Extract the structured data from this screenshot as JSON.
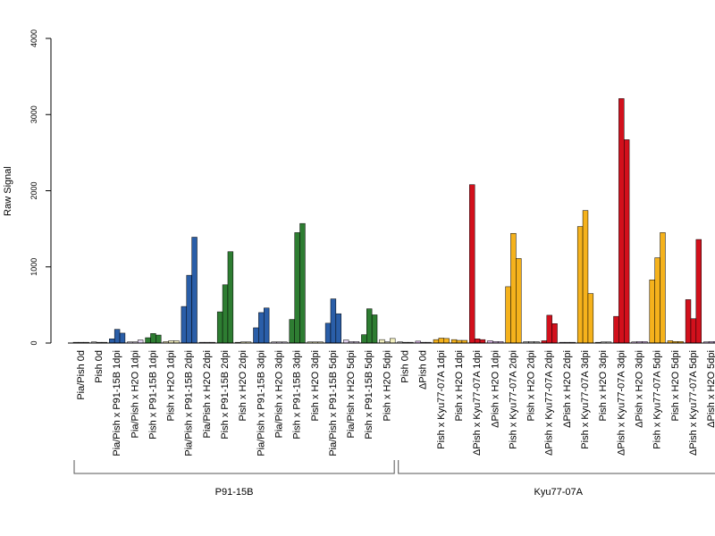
{
  "chart_data": {
    "type": "bar",
    "grouped": true,
    "ylabel": "Raw Signal",
    "ylim": [
      0,
      4000
    ],
    "yticks": [
      "0",
      "1000",
      "2000",
      "3000",
      "4000"
    ],
    "grid": false,
    "legend": "none",
    "categories": [
      "Pia/Pish 0d",
      "Pish 0d",
      "Pia/Pish x P91-15B 1dpi",
      "Pia/Pish x H2O 1dpi",
      "Pish x P91-15B 1dpi",
      "Pish x H2O 1dpi",
      "Pia/Pish x P91-15B 2dpi",
      "Pia/Pish x H2O 2dpi",
      "Pish x P91-15B 2dpi",
      "Pish x H2O 2dpi",
      "Pia/Pish x P91-15B 3dpi",
      "Pia/Pish x H2O 3dpi",
      "Pish x P91-15B 3dpi",
      "Pish x H2O 3dpi",
      "Pia/Pish x P91-15B 5dpi",
      "Pia/Pish x H2O 5dpi",
      "Pish x P91-15B 5dpi",
      "Pish x H2O 5dpi",
      "Pish 0d",
      "ΔPish 0d",
      "Pish x Kyu77-07A 1dpi",
      "Pish x H2O 1dpi",
      "ΔPish x Kyu77-07A 1dpi",
      "ΔPish x H2O 1dpi",
      "Pish x Kyu77-07A 2dpi",
      "Pish x H2O 2dpi",
      "ΔPish x Kyu77-07A 2dpi",
      "ΔPish x H2O 2dpi",
      "Pish x Kyu77-07A 3dpi",
      "Pish x H2O 3dpi",
      "ΔPish x Kyu77-07A 3dpi",
      "ΔPish x H2O 3dpi",
      "Pish x Kyu77-07A 5dpi",
      "Pish x H2O 5dpi",
      "ΔPish x Kyu77-07A 5dpi",
      "ΔPish x H2O 5dpi"
    ],
    "colors": [
      "#c9c9c9",
      "#c9c9c9",
      "#2a5ea8",
      "#e2d3f0",
      "#2e7d32",
      "#f3f0bf",
      "#2a5ea8",
      "#e2d3f0",
      "#2e7d32",
      "#f3f0bf",
      "#2a5ea8",
      "#e2d3f0",
      "#2e7d32",
      "#f3f0bf",
      "#2a5ea8",
      "#e2d3f0",
      "#2e7d32",
      "#f3f0bf",
      "#c9c9c9",
      "#dcb7ea",
      "#f5b21c",
      "#f5b21c",
      "#d2101c",
      "#dcb7ea",
      "#f5b21c",
      "#c9c9c9",
      "#d2101c",
      "#dcb7ea",
      "#f5b21c",
      "#c9c9c9",
      "#d2101c",
      "#dcb7ea",
      "#f5b21c",
      "#f5b21c",
      "#d2101c",
      "#dcb7ea"
    ],
    "series": [
      {
        "values": [
          10,
          15,
          55,
          15,
          70,
          20,
          480,
          10,
          410,
          10,
          200,
          15,
          310,
          15,
          260,
          40,
          110,
          45,
          15,
          25,
          45,
          45,
          2080,
          30,
          740,
          20,
          30,
          10,
          1530,
          10,
          350,
          15,
          830,
          30,
          570,
          15
        ]
      },
      {
        "values": [
          10,
          10,
          180,
          15,
          125,
          30,
          890,
          10,
          765,
          15,
          400,
          15,
          1450,
          15,
          580,
          20,
          450,
          15,
          10,
          10,
          65,
          35,
          55,
          20,
          1440,
          20,
          365,
          10,
          1740,
          15,
          3210,
          20,
          1120,
          20,
          320,
          20
        ]
      },
      {
        "values": [
          10,
          10,
          130,
          40,
          105,
          30,
          1390,
          10,
          1200,
          15,
          460,
          15,
          1570,
          15,
          385,
          20,
          370,
          60,
          10,
          10,
          60,
          35,
          45,
          20,
          1110,
          20,
          255,
          10,
          650,
          15,
          2670,
          20,
          1450,
          20,
          1360,
          20
        ]
      }
    ],
    "groups": [
      {
        "label": "P91-15B",
        "first": 0,
        "last": 17
      },
      {
        "label": "Kyu77-07A",
        "first": 18,
        "last": 35
      }
    ]
  }
}
